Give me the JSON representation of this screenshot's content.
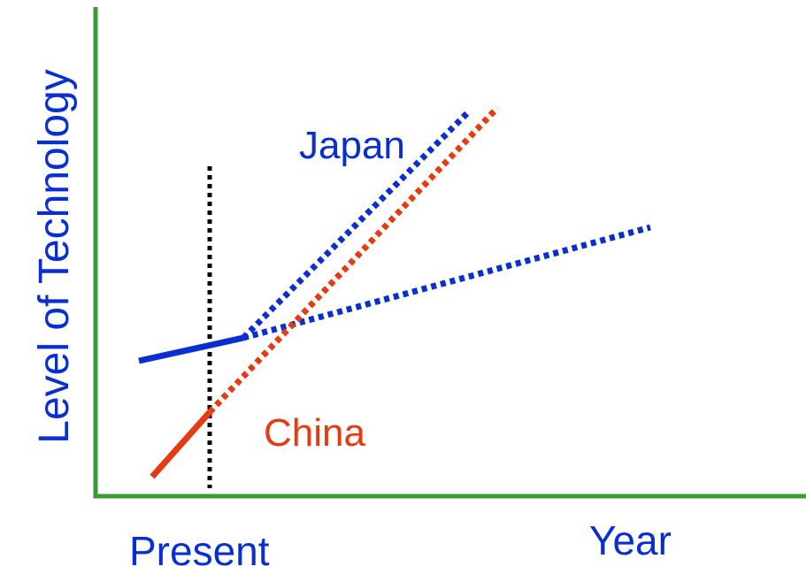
{
  "colors": {
    "axis": "#3a9a35",
    "japan": "#0a2fd0",
    "china": "#e63a10",
    "present_line": "#000000"
  },
  "labels": {
    "y_axis": "Level of Technology",
    "x_axis": "Year",
    "present": "Present",
    "japan": "Japan",
    "china": "China"
  },
  "chart_data": {
    "type": "line",
    "ylabel": "Level of Technology",
    "xlabel": "Year",
    "annotations": [
      "Present"
    ],
    "series": [
      {
        "name": "Japan",
        "past": "solid",
        "projections": [
          "steep dotted",
          "shallow dotted"
        ]
      },
      {
        "name": "China",
        "past": "solid",
        "projections": [
          "steep dotted"
        ]
      }
    ]
  }
}
